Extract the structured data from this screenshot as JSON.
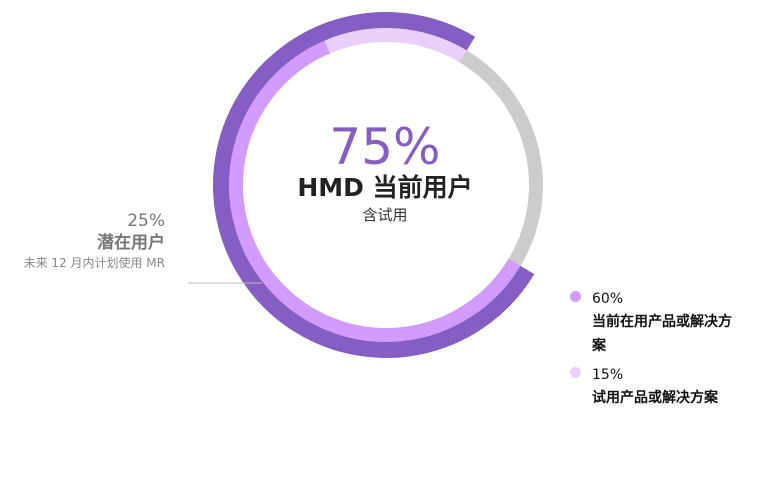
{
  "center": {
    "percent": "75%",
    "title": "HMD 当前用户",
    "subtitle": "含试用"
  },
  "left_label": {
    "percent": "25%",
    "title": "潜在用户",
    "note": "未来 12 月内计划使用 MR"
  },
  "legend": [
    {
      "percent": "60%",
      "label": "当前在用产品或解决方案",
      "color": "#d29bff"
    },
    {
      "percent": "15%",
      "label": "试用产品或解决方案",
      "color": "#e8d0fa"
    }
  ],
  "chart_data": {
    "type": "donut",
    "series": [
      {
        "name": "HMD 当前用户",
        "value": 75,
        "color": "#845ec2",
        "ring": "outer"
      },
      {
        "name": "当前在用产品或解决方案",
        "value": 60,
        "color": "#d29bff",
        "ring": "inner"
      },
      {
        "name": "试用产品或解决方案",
        "value": 15,
        "color": "#e8d0fa",
        "ring": "inner"
      },
      {
        "name": "潜在用户",
        "value": 25,
        "color": "#cccccc",
        "ring": "inner"
      }
    ]
  }
}
